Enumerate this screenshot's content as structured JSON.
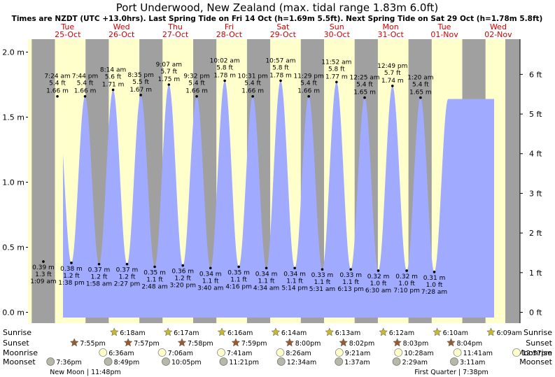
{
  "chart_data": {
    "type": "area",
    "title": "Port Underwood, New Zealand (max. tidal range 1.83m 6.0ft)",
    "subtitle": "Times are NZDT (UTC +13.0hrs). Last Spring Tide on Fri 14 Oct (h=1.69m 5.5ft). Next Spring Tide on Sat 29 Oct (h=1.78m 5.8ft)",
    "days": [
      {
        "name": "Tue",
        "date": "25-Oct"
      },
      {
        "name": "Wed",
        "date": "26-Oct"
      },
      {
        "name": "Thu",
        "date": "27-Oct"
      },
      {
        "name": "Fri",
        "date": "28-Oct"
      },
      {
        "name": "Sat",
        "date": "29-Oct"
      },
      {
        "name": "Sun",
        "date": "30-Oct"
      },
      {
        "name": "Mon",
        "date": "31-Oct"
      },
      {
        "name": "Tue",
        "date": "01-Nov"
      },
      {
        "name": "Wed",
        "date": "02-Nov"
      }
    ],
    "y_left": {
      "unit": "m",
      "ticks": [
        "0.0 m",
        "0.5 m",
        "1.0 m",
        "1.5 m",
        "2.0 m"
      ],
      "range": [
        -0.07,
        2.1
      ]
    },
    "y_right": {
      "unit": "ft",
      "ticks": [
        "0 ft",
        "1 ft",
        "2 ft",
        "3 ft",
        "4 ft",
        "5 ft",
        "6 ft"
      ]
    },
    "tides": [
      {
        "type": "low",
        "time": "1:09 am",
        "m": 0.39,
        "ft": "1.3 ft",
        "m_label": "0.39 m",
        "day": "25-Oct"
      },
      {
        "type": "high",
        "time": "7:24 am",
        "m": 1.66,
        "ft": "5.4 ft",
        "m_label": "1.66 m",
        "day": "25-Oct"
      },
      {
        "type": "low",
        "time": "1:38 pm",
        "m": 0.38,
        "ft": "1.2 ft",
        "m_label": "0.38 m",
        "day": "25-Oct"
      },
      {
        "type": "high",
        "time": "7:44 pm",
        "m": 1.66,
        "ft": "5.4 ft",
        "m_label": "1.66 m",
        "day": "25-Oct"
      },
      {
        "type": "low",
        "time": "1:58 am",
        "m": 0.37,
        "ft": "1.2 ft",
        "m_label": "0.37 m",
        "day": "26-Oct"
      },
      {
        "type": "high",
        "time": "8:14 am",
        "m": 1.71,
        "ft": "5.6 ft",
        "m_label": "1.71 m",
        "day": "26-Oct"
      },
      {
        "type": "low",
        "time": "2:27 pm",
        "m": 0.37,
        "ft": "1.2 ft",
        "m_label": "0.37 m",
        "day": "26-Oct"
      },
      {
        "type": "high",
        "time": "8:35 pm",
        "m": 1.67,
        "ft": "5.5 ft",
        "m_label": "1.67 m",
        "day": "26-Oct"
      },
      {
        "type": "low",
        "time": "2:48 am",
        "m": 0.35,
        "ft": "1.1 ft",
        "m_label": "0.35 m",
        "day": "27-Oct"
      },
      {
        "type": "high",
        "time": "9:07 am",
        "m": 1.75,
        "ft": "5.7 ft",
        "m_label": "1.75 m",
        "day": "27-Oct"
      },
      {
        "type": "low",
        "time": "3:20 pm",
        "m": 0.36,
        "ft": "1.2 ft",
        "m_label": "0.36 m",
        "day": "27-Oct"
      },
      {
        "type": "high",
        "time": "9:32 pm",
        "m": 1.66,
        "ft": "5.4 ft",
        "m_label": "1.66 m",
        "day": "27-Oct"
      },
      {
        "type": "low",
        "time": "3:40 am",
        "m": 0.34,
        "ft": "1.1 ft",
        "m_label": "0.34 m",
        "day": "28-Oct"
      },
      {
        "type": "high",
        "time": "10:02 am",
        "m": 1.78,
        "ft": "5.8 ft",
        "m_label": "1.78 m",
        "day": "28-Oct"
      },
      {
        "type": "low",
        "time": "4:16 pm",
        "m": 0.35,
        "ft": "1.1 ft",
        "m_label": "0.35 m",
        "day": "28-Oct"
      },
      {
        "type": "high",
        "time": "10:31 pm",
        "m": 1.66,
        "ft": "5.4 ft",
        "m_label": "1.66 m",
        "day": "28-Oct"
      },
      {
        "type": "low",
        "time": "4:34 am",
        "m": 0.34,
        "ft": "1.1 ft",
        "m_label": "0.34 m",
        "day": "29-Oct"
      },
      {
        "type": "high",
        "time": "10:57 am",
        "m": 1.78,
        "ft": "5.8 ft",
        "m_label": "1.78 m",
        "day": "29-Oct"
      },
      {
        "type": "low",
        "time": "5:14 pm",
        "m": 0.34,
        "ft": "1.1 ft",
        "m_label": "0.34 m",
        "day": "29-Oct"
      },
      {
        "type": "high",
        "time": "11:29 pm",
        "m": 1.66,
        "ft": "5.4 ft",
        "m_label": "1.66 m",
        "day": "29-Oct"
      },
      {
        "type": "low",
        "time": "5:31 am",
        "m": 0.33,
        "ft": "1.1 ft",
        "m_label": "0.33 m",
        "day": "30-Oct"
      },
      {
        "type": "high",
        "time": "11:52 am",
        "m": 1.77,
        "ft": "5.8 ft",
        "m_label": "1.77 m",
        "day": "30-Oct"
      },
      {
        "type": "low",
        "time": "6:13 pm",
        "m": 0.33,
        "ft": "1.1 ft",
        "m_label": "0.33 m",
        "day": "30-Oct"
      },
      {
        "type": "high",
        "time": "12:25 am",
        "m": 1.65,
        "ft": "5.4 ft",
        "m_label": "1.65 m",
        "day": "31-Oct"
      },
      {
        "type": "low",
        "time": "6:30 am",
        "m": 0.32,
        "ft": "1.0 ft",
        "m_label": "0.32 m",
        "day": "31-Oct"
      },
      {
        "type": "high",
        "time": "12:49 pm",
        "m": 1.74,
        "ft": "5.7 ft",
        "m_label": "1.74 m",
        "day": "31-Oct"
      },
      {
        "type": "low",
        "time": "7:10 pm",
        "m": 0.32,
        "ft": "1.0 ft",
        "m_label": "0.32 m",
        "day": "31-Oct"
      },
      {
        "type": "high",
        "time": "1:20 am",
        "m": 1.65,
        "ft": "5.4 ft",
        "m_label": "1.65 m",
        "day": "01-Nov"
      },
      {
        "type": "low",
        "time": "7:28 am",
        "m": 0.31,
        "ft": "1.0 ft",
        "m_label": "0.31 m",
        "day": "01-Nov"
      }
    ],
    "astro": {
      "row_labels": [
        "Sunrise",
        "Sunset",
        "Moonrise",
        "Moonset"
      ],
      "sunrise": [
        "6:18am",
        "6:17am",
        "6:16am",
        "6:14am",
        "6:13am",
        "6:12am",
        "6:10am",
        "6:09am"
      ],
      "sunset": [
        "7:55pm",
        "7:57pm",
        "7:58pm",
        "7:59pm",
        "8:00pm",
        "8:02pm",
        "8:03pm",
        "8:04pm"
      ],
      "moonrise": [
        "6:36am",
        "7:06am",
        "7:41am",
        "8:26am",
        "9:21am",
        "10:28am",
        "11:41am",
        "12:57pm"
      ],
      "moonset": [
        "7:36pm",
        "8:49pm",
        "10:05pm",
        "11:21pm",
        "12:34am",
        "1:37am",
        "2:29am",
        "3:11am"
      ],
      "phases": [
        {
          "text": "New Moon | 11:48pm"
        },
        {
          "text": "First Quarter | 7:38pm"
        }
      ]
    },
    "colors": {
      "day": "#ffffcc",
      "night": "#a0a0a0",
      "water": "#a0aaff",
      "day_label": "#d40000",
      "sun": "#c8b830",
      "sunset": "#9a5a30",
      "moon": "#ffffcc",
      "moonset": "#b8b8a8"
    }
  }
}
